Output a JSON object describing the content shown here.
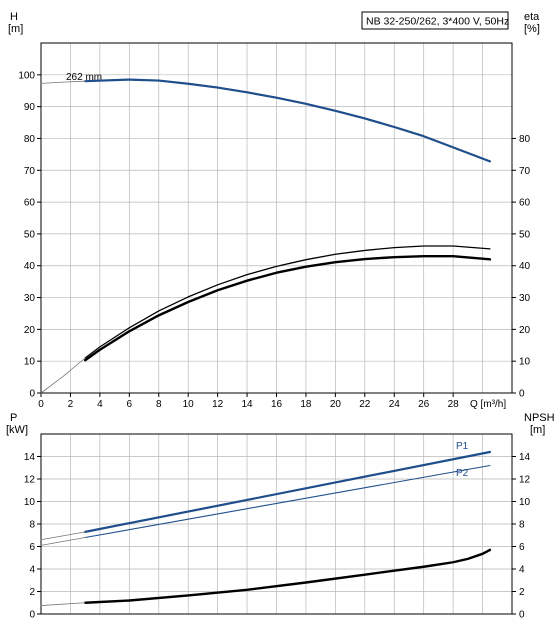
{
  "colors": {
    "blue": "#1f4e8c",
    "black": "#000000",
    "grid": "#b8b8b8"
  },
  "chart_data": [
    {
      "type": "line",
      "title": "NB 32-250/262, 3*400 V, 50Hz",
      "left_unit_top": "H",
      "left_unit_bottom": "[m]",
      "right_unit_top": "eta",
      "right_unit_bottom": "[%]",
      "xlabel": "Q [m³/h]",
      "xlim": [
        0,
        32
      ],
      "ylim": [
        0,
        110
      ],
      "x_ticks": [
        "0",
        "2",
        "4",
        "6",
        "8",
        "10",
        "12",
        "14",
        "16",
        "18",
        "20",
        "22",
        "24",
        "26",
        "28"
      ],
      "y_ticks_left": [
        "0",
        "10",
        "20",
        "30",
        "40",
        "50",
        "60",
        "70",
        "80",
        "90",
        "100"
      ],
      "y_ticks_right": [
        "0",
        "10",
        "20",
        "30",
        "40",
        "50",
        "60",
        "70",
        "80"
      ],
      "curve_label": "262 mm",
      "series": [
        {
          "color": "#1f4e8c",
          "width": 2.2,
          "x": [
            3,
            6,
            8,
            10,
            12,
            14,
            16,
            18,
            20,
            22,
            24,
            26,
            28,
            30.5
          ],
          "y": [
            98,
            98.5,
            98.2,
            97.2,
            96,
            94.5,
            92.8,
            90.9,
            88.7,
            86.3,
            83.6,
            80.7,
            77.2,
            72.8
          ]
        },
        {
          "color": "#777777",
          "width": 0.8,
          "x": [
            0,
            1.5,
            3
          ],
          "y": [
            97.3,
            97.7,
            98
          ]
        },
        {
          "color": "#000000",
          "width": 1.3,
          "x": [
            3,
            4,
            6,
            8,
            10,
            12,
            14,
            16,
            18,
            20,
            22,
            24,
            26,
            28,
            30.5
          ],
          "y": [
            11,
            14.5,
            20.5,
            25.8,
            30.2,
            34,
            37.2,
            39.8,
            41.9,
            43.6,
            44.8,
            45.7,
            46.2,
            46.2,
            45.3
          ]
        },
        {
          "color": "#000000",
          "width": 2.4,
          "x": [
            3,
            4,
            6,
            8,
            10,
            12,
            14,
            16,
            18,
            20,
            22,
            24,
            26,
            28,
            30.5
          ],
          "y": [
            10.3,
            13.6,
            19.4,
            24.4,
            28.6,
            32.3,
            35.3,
            37.8,
            39.7,
            41.1,
            42.1,
            42.7,
            43,
            43,
            42
          ]
        },
        {
          "color": "#777777",
          "width": 0.8,
          "x": [
            0,
            1.5,
            3
          ],
          "y": [
            0,
            5.2,
            11
          ]
        }
      ]
    },
    {
      "type": "line",
      "left_unit_top": "P",
      "left_unit_bottom": "[kW]",
      "right_unit_top": "NPSH",
      "right_unit_bottom": "[m]",
      "xlim": [
        0,
        32
      ],
      "ylim": [
        0,
        16
      ],
      "y_ticks_left": [
        "0",
        "2",
        "4",
        "6",
        "8",
        "10",
        "12",
        "14"
      ],
      "y_ticks_right": [
        "0",
        "2",
        "4",
        "6",
        "8",
        "10",
        "12",
        "14"
      ],
      "series": [
        {
          "name": "P1",
          "color": "#1f4e8c",
          "width": 2.2,
          "x": [
            3,
            30.5
          ],
          "y": [
            7.3,
            14.4
          ]
        },
        {
          "color": "#777777",
          "width": 0.8,
          "x": [
            0,
            3
          ],
          "y": [
            6.6,
            7.3
          ]
        },
        {
          "name": "P2",
          "color": "#1f4e8c",
          "width": 1.1,
          "x": [
            3,
            30.5
          ],
          "y": [
            6.8,
            13.2
          ]
        },
        {
          "color": "#777777",
          "width": 0.8,
          "x": [
            0,
            3
          ],
          "y": [
            6.1,
            6.8
          ]
        },
        {
          "color": "#000000",
          "width": 2.4,
          "x": [
            3,
            6,
            10,
            14,
            18,
            22,
            26,
            28,
            29,
            30,
            30.5
          ],
          "y": [
            1,
            1.2,
            1.65,
            2.15,
            2.8,
            3.5,
            4.2,
            4.6,
            4.9,
            5.35,
            5.7
          ]
        },
        {
          "color": "#777777",
          "width": 0.8,
          "x": [
            0,
            3
          ],
          "y": [
            0.75,
            1
          ]
        }
      ]
    }
  ]
}
